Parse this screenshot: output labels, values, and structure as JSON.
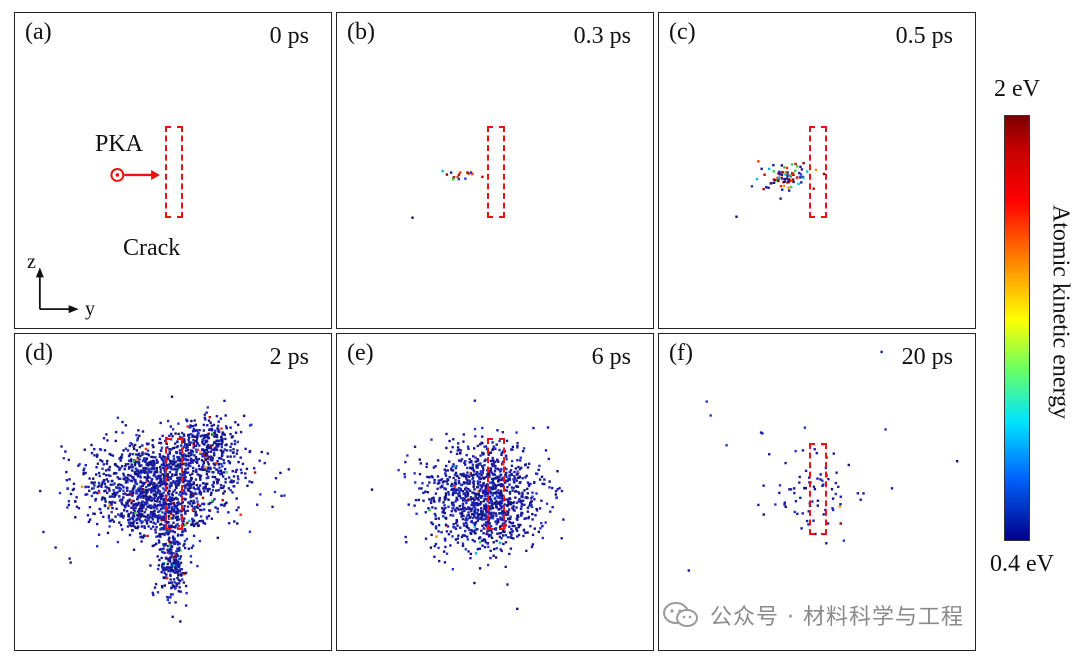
{
  "panels": [
    {
      "label": "(a)",
      "time": "0 ps"
    },
    {
      "label": "(b)",
      "time": "0.3 ps"
    },
    {
      "label": "(c)",
      "time": "0.5 ps"
    },
    {
      "label": "(d)",
      "time": "2 ps"
    },
    {
      "label": "(e)",
      "time": "6 ps"
    },
    {
      "label": "(f)",
      "time": "20 ps"
    }
  ],
  "annotations": {
    "pka": "PKA",
    "crack": "Crack",
    "axis_z": "z",
    "axis_y": "y"
  },
  "colorbar": {
    "title": "Atomic kinetic energy",
    "max_label": "2 eV",
    "min_label": "0.4 eV"
  },
  "watermark": {
    "text": "公众号 · 材料科学与工程"
  },
  "colors": {
    "atom_low": "#1a1aa0",
    "atom_high": "#8b0000",
    "crack": "#e11111"
  }
}
